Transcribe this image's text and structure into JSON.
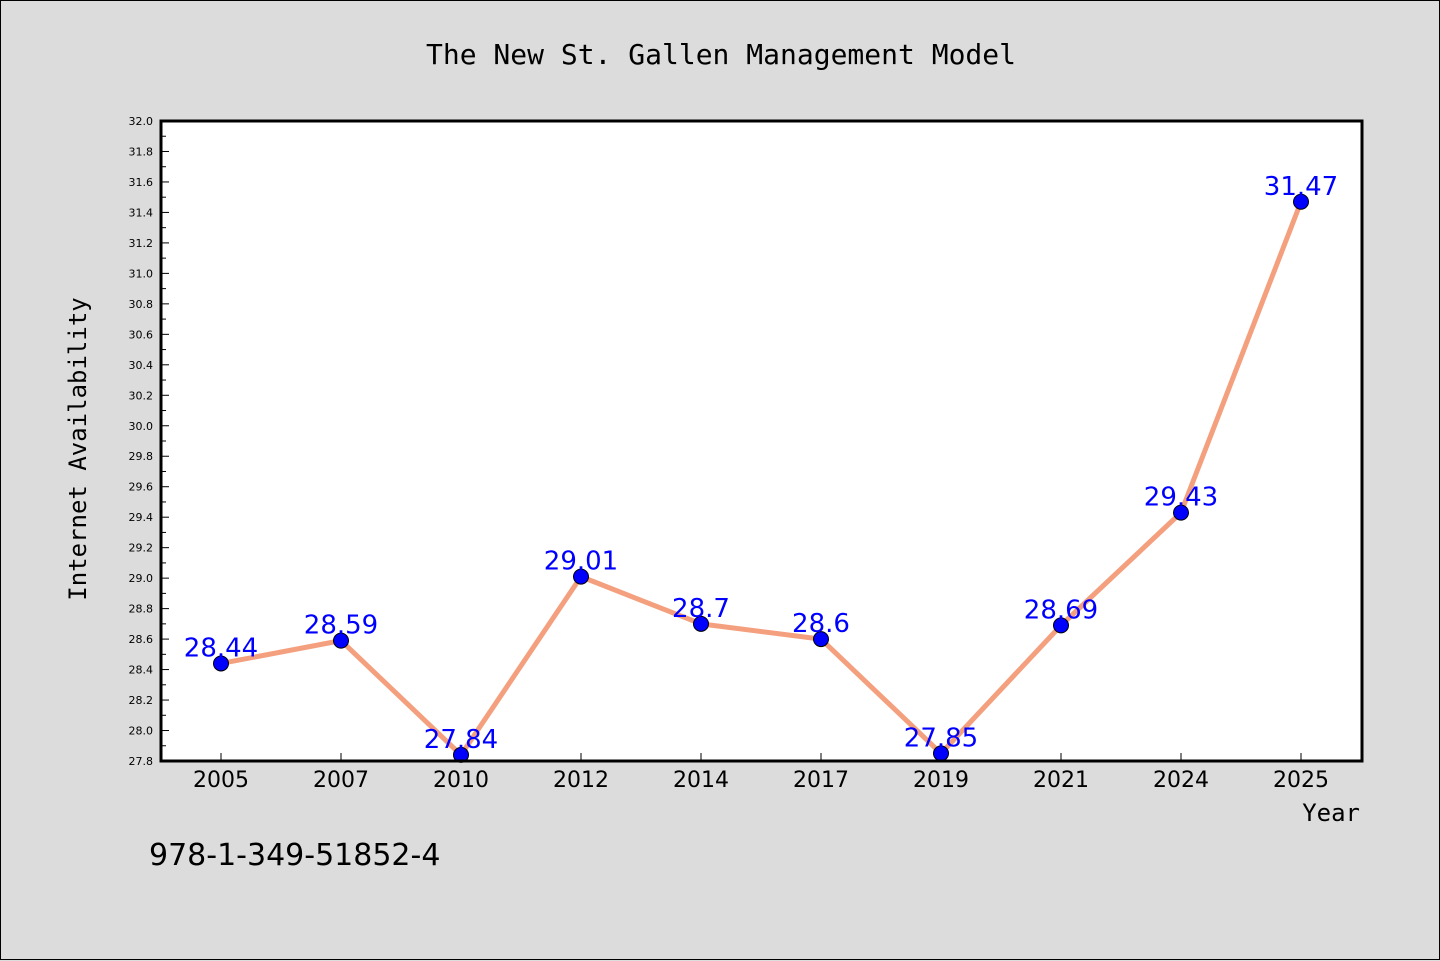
{
  "chart_data": {
    "type": "line",
    "title": "The New St. Gallen Management Model",
    "xlabel": "Year",
    "ylabel": "Internet Availability",
    "categories": [
      "2005",
      "2007",
      "2010",
      "2012",
      "2014",
      "2017",
      "2019",
      "2021",
      "2024",
      "2025"
    ],
    "series": [
      {
        "values": [
          28.44,
          28.59,
          27.84,
          29.01,
          28.7,
          28.6,
          27.85,
          28.69,
          29.43,
          31.47
        ]
      }
    ],
    "data_labels": [
      "28.44",
      "28.59",
      "27.84",
      "29.01",
      "28.7",
      "28.6",
      "27.85",
      "28.69",
      "29.43",
      "31.47"
    ],
    "ylim": [
      27.8,
      32.0
    ],
    "yticks": [
      "27.8",
      "28.0",
      "28.2",
      "28.4",
      "28.6",
      "28.8",
      "29.0",
      "29.2",
      "29.4",
      "29.6",
      "29.8",
      "30.0",
      "30.2",
      "30.4",
      "30.6",
      "30.8",
      "31.0",
      "31.2",
      "31.4",
      "31.6",
      "31.8",
      "32.0"
    ],
    "grid": false,
    "legend": "none",
    "colors": {
      "line": "#f4a07e",
      "marker": "#0000ff",
      "label": "#0000ff",
      "background": "#dcdcdc",
      "plot_background": "#ffffff"
    }
  },
  "footnote": "978-1-349-51852-4"
}
